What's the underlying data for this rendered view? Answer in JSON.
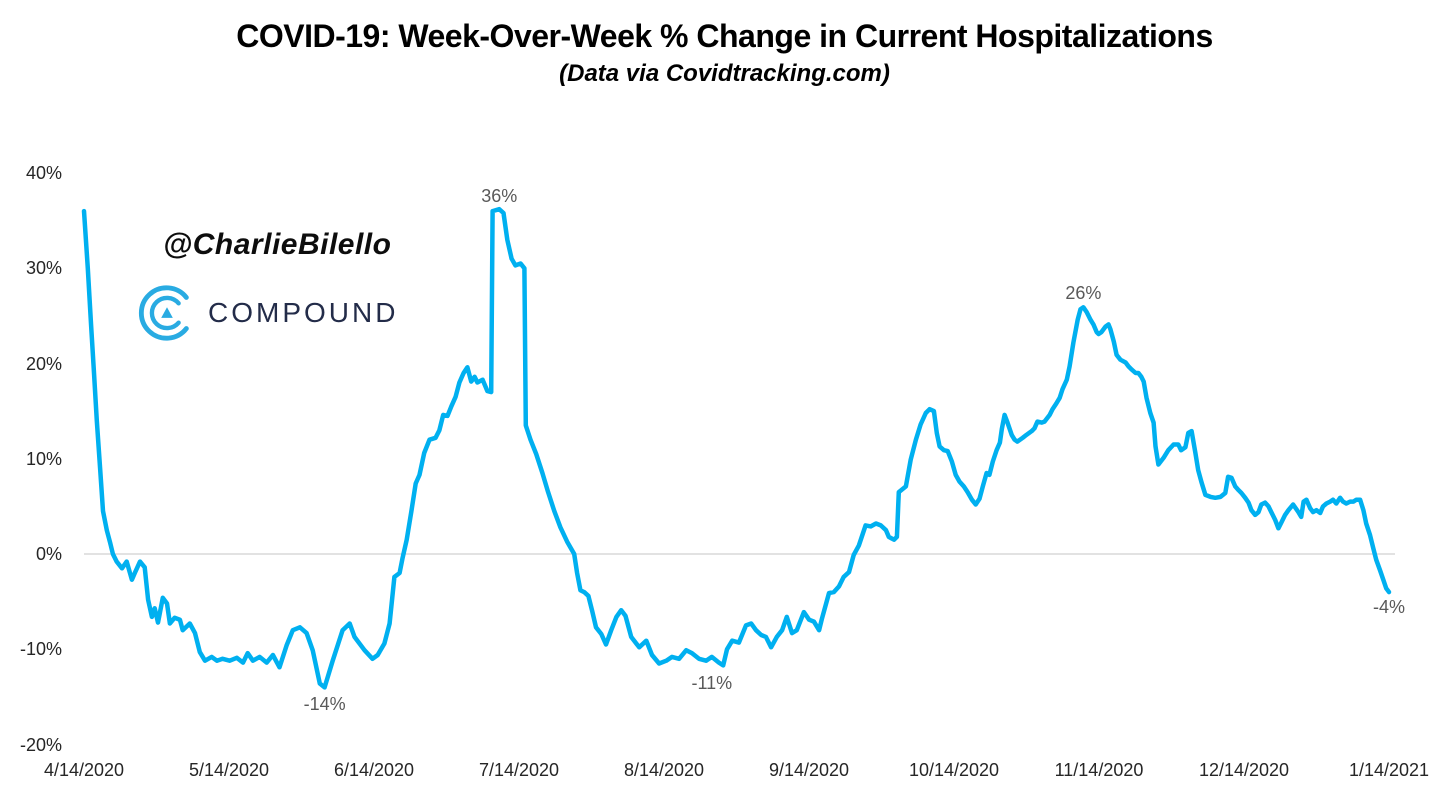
{
  "header": {
    "title": "COVID-19: Week-Over-Week % Change in Current Hospitalizations",
    "subtitle": "(Data via Covidtracking.com)"
  },
  "watermark": {
    "handle": "@CharlieBilello",
    "brand": "COMPOUND"
  },
  "colors": {
    "line": "#00B0F0",
    "grid": "#D9D9D9",
    "axis_text": "#262626",
    "annotation": "#595959",
    "brand_navy": "#232C49",
    "brand_blue": "#29ABE2"
  },
  "chart_data": {
    "type": "line",
    "title": "COVID-19: Week-Over-Week % Change in Current Hospitalizations",
    "subtitle": "(Data via Covidtracking.com)",
    "legend": "none",
    "grid": "horizontal zero-line only",
    "x_axis": {
      "start_date": "4/14/2020",
      "end_date": "1/14/2021",
      "tick_labels": [
        "4/14/2020",
        "5/14/2020",
        "6/14/2020",
        "7/14/2020",
        "8/14/2020",
        "9/14/2020",
        "10/14/2020",
        "11/14/2020",
        "12/14/2020",
        "1/14/2021"
      ],
      "total_days": 275
    },
    "y_axis": {
      "tick_labels": [
        "40%",
        "30%",
        "20%",
        "10%",
        "0%",
        "-10%",
        "-20%"
      ],
      "ticks": [
        40,
        30,
        20,
        10,
        0,
        -10,
        -20
      ],
      "range": [
        -20,
        40
      ],
      "unit": "%",
      "gridline_at": 0
    },
    "annotations": [
      {
        "text": "36%",
        "d": 87.5,
        "v": 36.2,
        "dy": -13
      },
      {
        "text": "-14%",
        "d": 50.7,
        "v": -14,
        "dy": 17
      },
      {
        "text": "-11%",
        "d": 132.3,
        "v": -10.8,
        "dy": 26
      },
      {
        "text": "26%",
        "d": 210.6,
        "v": 25.9,
        "dy": -14
      },
      {
        "text": "-4%",
        "d": 275,
        "v": -4,
        "dy": 15
      }
    ],
    "series": [
      {
        "name": "Week-over-week % change in current hospitalizations",
        "points": [
          [
            0,
            36
          ],
          [
            0.8,
            30
          ],
          [
            1.5,
            24
          ],
          [
            2.1,
            19
          ],
          [
            2.7,
            14
          ],
          [
            3.4,
            9
          ],
          [
            4,
            4.5
          ],
          [
            4.8,
            2.5
          ],
          [
            5.5,
            1.2
          ],
          [
            6.1,
            0
          ],
          [
            6.9,
            -0.8
          ],
          [
            8,
            -1.5
          ],
          [
            9,
            -0.8
          ],
          [
            10.1,
            -2.7
          ],
          [
            10.7,
            -2
          ],
          [
            11.8,
            -0.8
          ],
          [
            12.8,
            -1.4
          ],
          [
            13.5,
            -4.8
          ],
          [
            14.3,
            -6.6
          ],
          [
            14.9,
            -5.7
          ],
          [
            15.6,
            -7.2
          ],
          [
            16.6,
            -4.6
          ],
          [
            17.5,
            -5.2
          ],
          [
            18.1,
            -7.3
          ],
          [
            19.1,
            -6.7
          ],
          [
            20.2,
            -6.9
          ],
          [
            20.8,
            -8
          ],
          [
            22.3,
            -7.3
          ],
          [
            23.4,
            -8.3
          ],
          [
            24.4,
            -10.3
          ],
          [
            25.5,
            -11.2
          ],
          [
            26.9,
            -10.8
          ],
          [
            28,
            -11.2
          ],
          [
            29.2,
            -11
          ],
          [
            30.7,
            -11.2
          ],
          [
            32.2,
            -10.9
          ],
          [
            33.5,
            -11.4
          ],
          [
            34.5,
            -10.4
          ],
          [
            35.6,
            -11.2
          ],
          [
            37,
            -10.8
          ],
          [
            38.5,
            -11.4
          ],
          [
            39.8,
            -10.6
          ],
          [
            41.2,
            -11.9
          ],
          [
            42.7,
            -9.6
          ],
          [
            44,
            -8
          ],
          [
            45.5,
            -7.7
          ],
          [
            46.9,
            -8.3
          ],
          [
            48.2,
            -10.1
          ],
          [
            49.7,
            -13.6
          ],
          [
            50.7,
            -14
          ],
          [
            52.4,
            -11.2
          ],
          [
            54.5,
            -8
          ],
          [
            56,
            -7.3
          ],
          [
            57,
            -8.7
          ],
          [
            59.1,
            -10.1
          ],
          [
            60.8,
            -11
          ],
          [
            61.9,
            -10.6
          ],
          [
            63.3,
            -9.4
          ],
          [
            64.4,
            -7.3
          ],
          [
            65.4,
            -2.4
          ],
          [
            66.5,
            -2
          ],
          [
            67.1,
            -0.5
          ],
          [
            68,
            1.5
          ],
          [
            69,
            4.5
          ],
          [
            69.9,
            7.4
          ],
          [
            70.7,
            8.3
          ],
          [
            71.7,
            10.6
          ],
          [
            72.8,
            12
          ],
          [
            74.1,
            12.2
          ],
          [
            74.9,
            13
          ],
          [
            75.7,
            14.6
          ],
          [
            76.6,
            14.5
          ],
          [
            77.4,
            15.5
          ],
          [
            78.3,
            16.5
          ],
          [
            79.1,
            18
          ],
          [
            80,
            19
          ],
          [
            80.8,
            19.6
          ],
          [
            81.6,
            18.1
          ],
          [
            82.3,
            18.6
          ],
          [
            82.9,
            18
          ],
          [
            84,
            18.3
          ],
          [
            85,
            17.1
          ],
          [
            85.8,
            17
          ],
          [
            86.1,
            36
          ],
          [
            87.5,
            36.2
          ],
          [
            88.4,
            35.8
          ],
          [
            89.2,
            33
          ],
          [
            90.1,
            31
          ],
          [
            90.9,
            30.3
          ],
          [
            92,
            30.5
          ],
          [
            92.8,
            30
          ],
          [
            93.1,
            13.5
          ],
          [
            94.1,
            12
          ],
          [
            95.3,
            10.5
          ],
          [
            96.6,
            8.5
          ],
          [
            97.8,
            6.5
          ],
          [
            99.1,
            4.5
          ],
          [
            100.4,
            2.8
          ],
          [
            101.8,
            1.3
          ],
          [
            103.3,
            0
          ],
          [
            103.9,
            -2
          ],
          [
            104.6,
            -3.8
          ],
          [
            105.4,
            -4
          ],
          [
            106.3,
            -4.4
          ],
          [
            107.1,
            -6
          ],
          [
            107.9,
            -7.7
          ],
          [
            109,
            -8.4
          ],
          [
            110,
            -9.5
          ],
          [
            111.1,
            -8
          ],
          [
            112.2,
            -6.6
          ],
          [
            113.2,
            -5.9
          ],
          [
            114.1,
            -6.5
          ],
          [
            115.3,
            -8.7
          ],
          [
            117,
            -9.8
          ],
          [
            118.5,
            -9.1
          ],
          [
            119.7,
            -10.6
          ],
          [
            121.2,
            -11.5
          ],
          [
            122.7,
            -11.2
          ],
          [
            123.9,
            -10.8
          ],
          [
            125.4,
            -11
          ],
          [
            126.9,
            -10.1
          ],
          [
            128.1,
            -10.4
          ],
          [
            129.6,
            -11
          ],
          [
            131.1,
            -11.2
          ],
          [
            132.3,
            -10.8
          ],
          [
            133.8,
            -11.4
          ],
          [
            134.7,
            -11.7
          ],
          [
            135.5,
            -10
          ],
          [
            136.6,
            -9.1
          ],
          [
            138,
            -9.3
          ],
          [
            139.5,
            -7.5
          ],
          [
            140.6,
            -7.3
          ],
          [
            141.6,
            -8
          ],
          [
            142.7,
            -8.5
          ],
          [
            143.7,
            -8.7
          ],
          [
            144.8,
            -9.8
          ],
          [
            146,
            -8.7
          ],
          [
            147.1,
            -8
          ],
          [
            148.1,
            -6.6
          ],
          [
            149.2,
            -8.3
          ],
          [
            150.2,
            -8
          ],
          [
            151.7,
            -6.1
          ],
          [
            152.8,
            -6.9
          ],
          [
            153.8,
            -7.1
          ],
          [
            154.9,
            -8
          ],
          [
            155.5,
            -6.8
          ],
          [
            157,
            -4.1
          ],
          [
            158,
            -4
          ],
          [
            159.1,
            -3.4
          ],
          [
            160.1,
            -2.4
          ],
          [
            161.2,
            -1.9
          ],
          [
            162.2,
            -0.1
          ],
          [
            163.3,
            0.9
          ],
          [
            164.7,
            3
          ],
          [
            165.8,
            2.9
          ],
          [
            166.9,
            3.2
          ],
          [
            167.9,
            3
          ],
          [
            169,
            2.5
          ],
          [
            169.6,
            1.8
          ],
          [
            170.7,
            1.5
          ],
          [
            171.3,
            1.8
          ],
          [
            171.7,
            6.5
          ],
          [
            173.2,
            7.1
          ],
          [
            174.2,
            9.9
          ],
          [
            175.3,
            12
          ],
          [
            176.3,
            13.6
          ],
          [
            177.4,
            14.8
          ],
          [
            178.2,
            15.2
          ],
          [
            179.1,
            15
          ],
          [
            179.7,
            12.7
          ],
          [
            180.3,
            11.3
          ],
          [
            181.2,
            10.9
          ],
          [
            182,
            10.8
          ],
          [
            182.9,
            9.7
          ],
          [
            183.7,
            8.3
          ],
          [
            184.5,
            7.6
          ],
          [
            185.4,
            7.1
          ],
          [
            186.2,
            6.5
          ],
          [
            187.1,
            5.7
          ],
          [
            187.9,
            5.2
          ],
          [
            188.7,
            5.8
          ],
          [
            189.4,
            7.1
          ],
          [
            190.2,
            8.5
          ],
          [
            190.8,
            8.3
          ],
          [
            191.5,
            9.7
          ],
          [
            192.3,
            10.9
          ],
          [
            193,
            11.7
          ],
          [
            193.4,
            13.1
          ],
          [
            194,
            14.6
          ],
          [
            194.6,
            13.8
          ],
          [
            195.5,
            12.5
          ],
          [
            196.1,
            12
          ],
          [
            196.7,
            11.8
          ],
          [
            197.8,
            12.2
          ],
          [
            198.6,
            12.5
          ],
          [
            199.7,
            12.9
          ],
          [
            200.3,
            13.2
          ],
          [
            200.9,
            13.9
          ],
          [
            201.8,
            13.8
          ],
          [
            202.4,
            13.9
          ],
          [
            203.5,
            14.6
          ],
          [
            204.1,
            15.2
          ],
          [
            204.9,
            15.8
          ],
          [
            205.6,
            16.4
          ],
          [
            206.2,
            17.3
          ],
          [
            207.1,
            18.3
          ],
          [
            207.7,
            19.7
          ],
          [
            208.5,
            22.2
          ],
          [
            209.4,
            24.6
          ],
          [
            210,
            25.7
          ],
          [
            210.6,
            25.9
          ],
          [
            211.3,
            25.4
          ],
          [
            212.1,
            24.6
          ],
          [
            212.7,
            24.1
          ],
          [
            213.4,
            23.3
          ],
          [
            213.8,
            23.1
          ],
          [
            214.4,
            23.3
          ],
          [
            215.3,
            23.9
          ],
          [
            215.9,
            24.1
          ],
          [
            216.3,
            23.6
          ],
          [
            217,
            22.3
          ],
          [
            217.6,
            20.9
          ],
          [
            218.4,
            20.4
          ],
          [
            219.5,
            20.1
          ],
          [
            220.1,
            19.7
          ],
          [
            220.7,
            19.4
          ],
          [
            221.6,
            19
          ],
          [
            222.2,
            19
          ],
          [
            222.8,
            18.6
          ],
          [
            223.3,
            18.1
          ],
          [
            223.9,
            16.4
          ],
          [
            224.7,
            14.8
          ],
          [
            225.4,
            13.8
          ],
          [
            225.8,
            11.3
          ],
          [
            226.4,
            9.4
          ],
          [
            227.5,
            10.1
          ],
          [
            228.5,
            10.9
          ],
          [
            229.6,
            11.5
          ],
          [
            230.6,
            11.5
          ],
          [
            231.2,
            10.9
          ],
          [
            232.1,
            11.2
          ],
          [
            232.7,
            12.7
          ],
          [
            233.4,
            12.9
          ],
          [
            234.2,
            10.6
          ],
          [
            234.8,
            8.8
          ],
          [
            235.5,
            7.5
          ],
          [
            236.3,
            6.2
          ],
          [
            237.4,
            6
          ],
          [
            238.4,
            5.9
          ],
          [
            239.5,
            6
          ],
          [
            240.5,
            6.4
          ],
          [
            241.1,
            8.1
          ],
          [
            241.8,
            8
          ],
          [
            242.6,
            7.1
          ],
          [
            243.3,
            6.7
          ],
          [
            243.9,
            6.4
          ],
          [
            244.7,
            5.9
          ],
          [
            245.4,
            5.4
          ],
          [
            246,
            4.6
          ],
          [
            246.8,
            4.1
          ],
          [
            247.5,
            4.4
          ],
          [
            248.1,
            5.2
          ],
          [
            248.9,
            5.4
          ],
          [
            249.6,
            5
          ],
          [
            250.2,
            4.4
          ],
          [
            251,
            3.6
          ],
          [
            251.7,
            2.7
          ],
          [
            252.3,
            3.3
          ],
          [
            253.1,
            4.1
          ],
          [
            253.8,
            4.6
          ],
          [
            254.8,
            5.2
          ],
          [
            255.9,
            4.4
          ],
          [
            256.5,
            3.9
          ],
          [
            257,
            5.5
          ],
          [
            257.6,
            5.7
          ],
          [
            258.4,
            4.8
          ],
          [
            259,
            4.4
          ],
          [
            259.7,
            4.6
          ],
          [
            260.5,
            4.3
          ],
          [
            261.1,
            5
          ],
          [
            261.8,
            5.3
          ],
          [
            262.6,
            5.5
          ],
          [
            263.2,
            5.7
          ],
          [
            263.9,
            5.3
          ],
          [
            264.7,
            5.9
          ],
          [
            265.3,
            5.5
          ],
          [
            266,
            5.3
          ],
          [
            266.8,
            5.5
          ],
          [
            267.5,
            5.5
          ],
          [
            268.1,
            5.7
          ],
          [
            268.9,
            5.7
          ],
          [
            269.6,
            4.6
          ],
          [
            270.2,
            3.2
          ],
          [
            271,
            2
          ],
          [
            271.7,
            0.6
          ],
          [
            272.3,
            -0.6
          ],
          [
            273.1,
            -1.7
          ],
          [
            273.8,
            -2.7
          ],
          [
            274.4,
            -3.6
          ],
          [
            275,
            -4
          ]
        ]
      }
    ]
  }
}
